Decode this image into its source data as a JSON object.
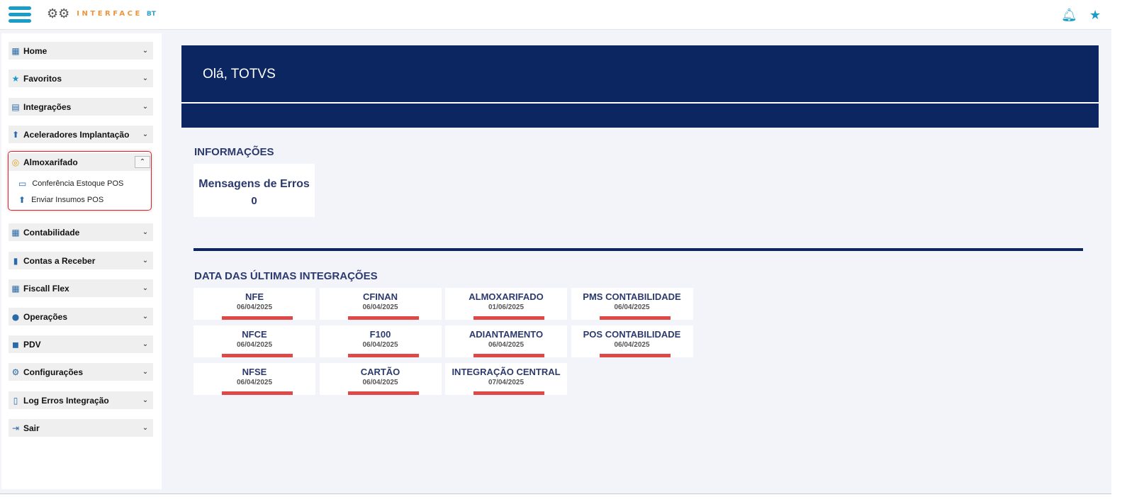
{
  "topbar": {
    "logo_text": "INTERFACE",
    "logo_suffix": "BT",
    "icons": [
      "menu-icon",
      "bell-icon",
      "star-icon"
    ]
  },
  "sidebar": {
    "items": [
      {
        "label": "Home",
        "icon": "building-icon"
      },
      {
        "label": "Favoritos",
        "icon": "star-icon"
      },
      {
        "label": "Integrações",
        "icon": "table-icon"
      },
      {
        "label": "Aceleradores Implantação",
        "icon": "arrow-up-circle-icon"
      },
      {
        "label": "Almoxarifado",
        "icon": "coins-icon",
        "expanded": true,
        "children": [
          {
            "label": "Conferência Estoque POS",
            "icon": "id-card-icon"
          },
          {
            "label": "Enviar Insumos POS",
            "icon": "arrow-up-circle-icon"
          }
        ]
      },
      {
        "label": "Contabilidade",
        "icon": "calendar-icon"
      },
      {
        "label": "Contas a Receber",
        "icon": "book-icon"
      },
      {
        "label": "Fiscall Flex",
        "icon": "calculator-icon"
      },
      {
        "label": "Operações",
        "icon": "user-gear-icon"
      },
      {
        "label": "PDV",
        "icon": "bag-icon"
      },
      {
        "label": "Configurações",
        "icon": "gear-icon"
      },
      {
        "label": "Log Erros Integração",
        "icon": "document-icon"
      },
      {
        "label": "Sair",
        "icon": "exit-icon"
      }
    ]
  },
  "banner": {
    "greeting": "Olá, TOTVS"
  },
  "info": {
    "title": "INFORMAÇÕES",
    "card": {
      "label": "Mensagens de Erros",
      "value": "0"
    }
  },
  "integrations": {
    "title": "DATA DAS ÚLTIMAS INTEGRAÇÕES",
    "tiles": [
      {
        "name": "NFE",
        "date": "06/04/2025"
      },
      {
        "name": "CFINAN",
        "date": "06/04/2025"
      },
      {
        "name": "ALMOXARIFADO",
        "date": "01/06/2025"
      },
      {
        "name": "PMS CONTABILIDADE",
        "date": "06/04/2025"
      },
      {
        "name": "NFCE",
        "date": "06/04/2025"
      },
      {
        "name": "F100",
        "date": "06/04/2025"
      },
      {
        "name": "ADIANTAMENTO",
        "date": "06/04/2025"
      },
      {
        "name": "POS CONTABILIDADE",
        "date": "06/04/2025"
      },
      {
        "name": "NFSE",
        "date": "06/04/2025"
      },
      {
        "name": "CARTÃO",
        "date": "06/04/2025"
      },
      {
        "name": "INTEGRAÇÃO CENTRAL",
        "date": "07/04/2025"
      }
    ]
  },
  "colors": {
    "navy": "#0b2660",
    "accent": "#1a9cc8",
    "status_bar": "#e04848",
    "highlight": "#e0202a"
  }
}
